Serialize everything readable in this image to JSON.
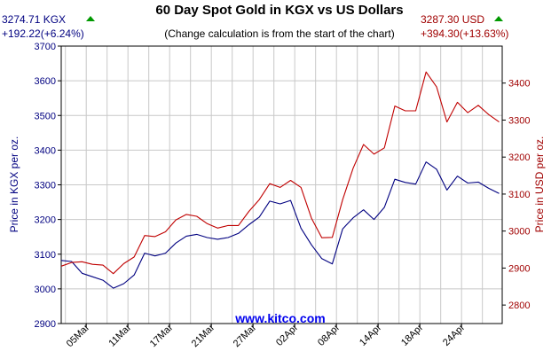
{
  "chart_data": {
    "type": "line",
    "title": "60 Day Spot Gold in KGX vs US Dollars",
    "subtitle": "(Change calculation is from the start of the chart)",
    "watermark": "www.kitco.com",
    "left_readout": {
      "value": "3274.71 KGX",
      "change": "+192.22(+6.24%)",
      "direction": "up",
      "color": "#000080"
    },
    "right_readout": {
      "value": "3287.30 USD",
      "change": "+394.30(+13.63%)",
      "direction": "up",
      "color": "#a00000"
    },
    "ylabel_left": "Price in KGX per oz.",
    "ylabel_right": "Price in USD per oz.",
    "ylim_left": [
      2900,
      3700
    ],
    "yticks_left": [
      "2900",
      "3000",
      "3100",
      "3200",
      "3300",
      "3400",
      "3500",
      "3600",
      "3700"
    ],
    "ylim_right": [
      2750,
      3500
    ],
    "yticks_right": [
      "2800",
      "2900",
      "3000",
      "3100",
      "3200",
      "3300",
      "3400"
    ],
    "x_index_range": [
      0,
      42.3
    ],
    "xticks": [
      {
        "label": "05Mar",
        "index": 2.4
      },
      {
        "label": "11Mar",
        "index": 6.4
      },
      {
        "label": "17Mar",
        "index": 10.4
      },
      {
        "label": "21Mar",
        "index": 14.4
      },
      {
        "label": "27Mar",
        "index": 18.4
      },
      {
        "label": "02Apr",
        "index": 22.4
      },
      {
        "label": "08Apr",
        "index": 26.4
      },
      {
        "label": "14Apr",
        "index": 30.4
      },
      {
        "label": "18Apr",
        "index": 34.4
      },
      {
        "label": "24Apr",
        "index": 38.4
      }
    ],
    "grid": true,
    "series": [
      {
        "name": "KGX",
        "axis": "left",
        "color": "#000080",
        "values": [
          3082,
          3079,
          3045,
          3035,
          3025,
          3002,
          3015,
          3040,
          3103,
          3095,
          3103,
          3132,
          3152,
          3157,
          3148,
          3143,
          3148,
          3160,
          3185,
          3207,
          3253,
          3245,
          3255,
          3175,
          3127,
          3087,
          3072,
          3173,
          3205,
          3228,
          3200,
          3235,
          3316,
          3307,
          3302,
          3366,
          3345,
          3285,
          3325,
          3305,
          3308,
          3290,
          3275
        ]
      },
      {
        "name": "USD",
        "axis": "right",
        "color": "#c00000",
        "values": [
          2905,
          2915,
          2917,
          2910,
          2908,
          2885,
          2912,
          2930,
          2988,
          2985,
          2998,
          3030,
          3045,
          3040,
          3020,
          3008,
          3015,
          3015,
          3053,
          3085,
          3128,
          3118,
          3137,
          3118,
          3035,
          2982,
          2983,
          3085,
          3170,
          3234,
          3208,
          3225,
          3338,
          3325,
          3325,
          3430,
          3390,
          3295,
          3348,
          3320,
          3340,
          3315,
          3295
        ]
      }
    ]
  }
}
